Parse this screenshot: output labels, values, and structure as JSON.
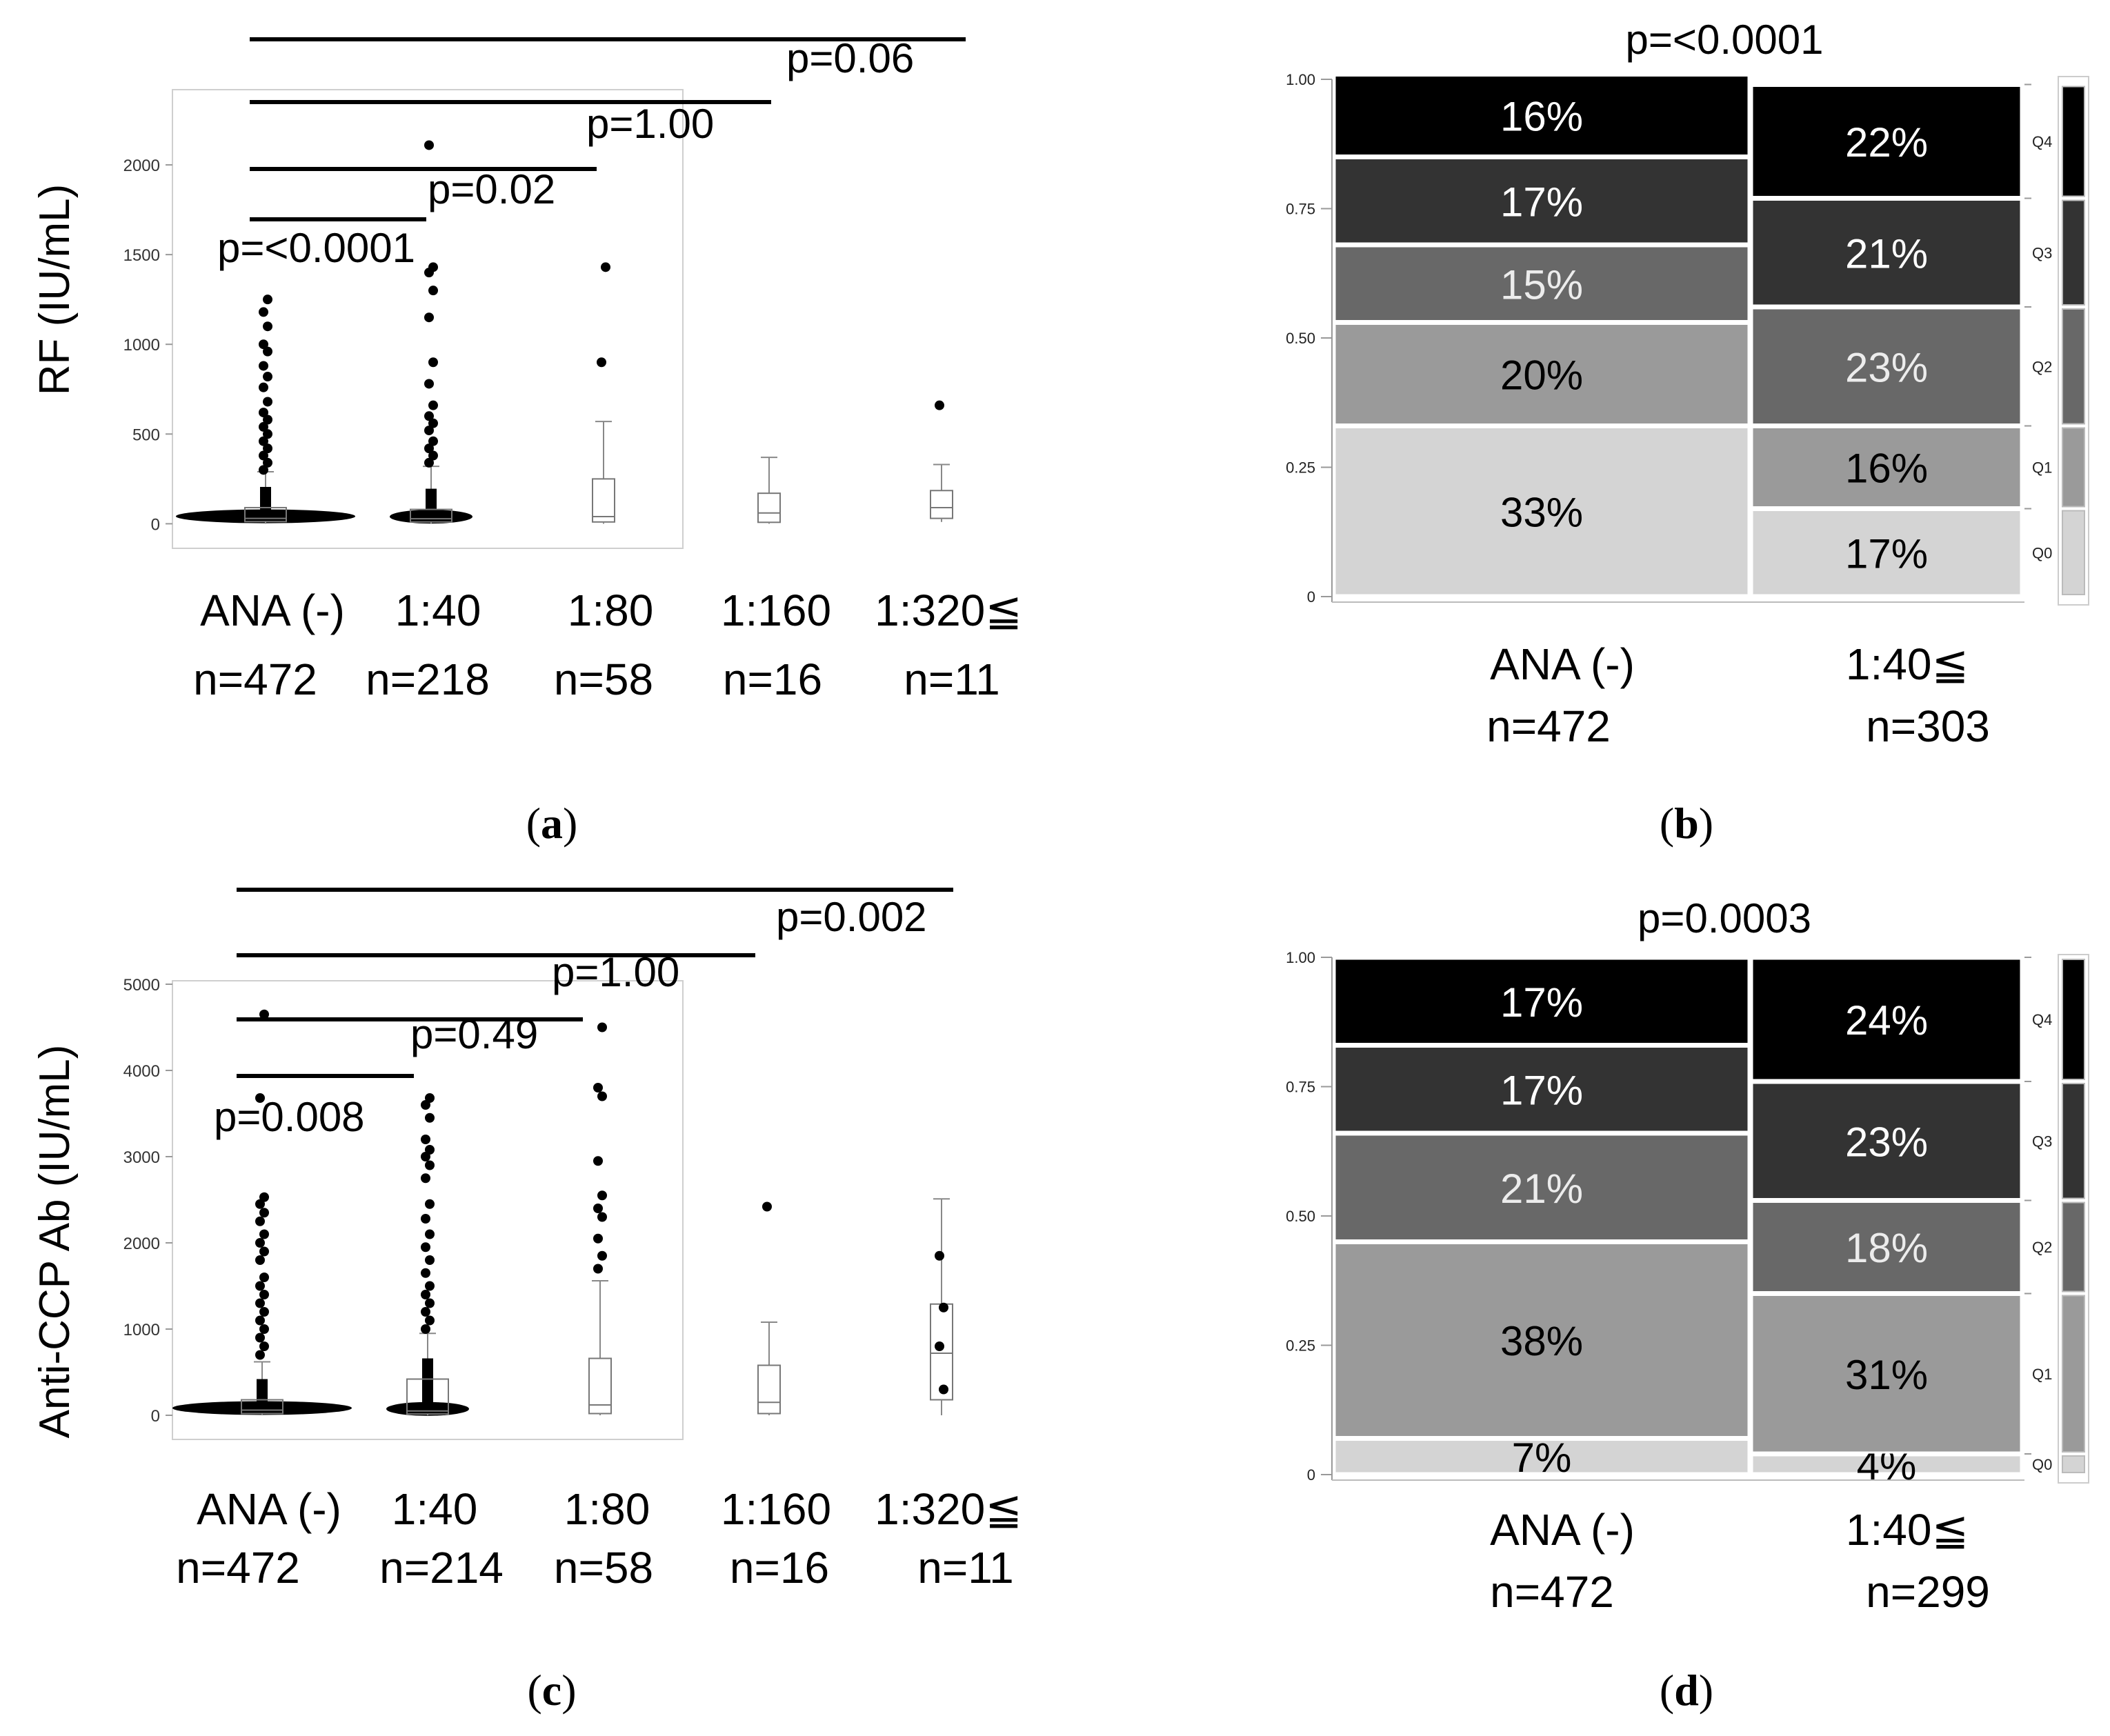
{
  "panels": [
    {
      "id": "a",
      "caption": "a",
      "chart_data": {
        "type": "scatter",
        "ylabel": "RF (IU/mL)",
        "ylim": [
          -60,
          2400
        ],
        "yticks": [
          0,
          500,
          1000,
          1500,
          2000
        ],
        "groups": [
          {
            "label": "ANA (-)",
            "n_label": "n=472",
            "box": {
              "q1": 12,
              "median": 30,
              "q3": 90,
              "wlo": 0,
              "whi": 290
            },
            "outliers": [
              300,
              340,
              380,
              420,
              460,
              500,
              540,
              580,
              620,
              680,
              760,
              820,
              880,
              960,
              1000,
              1100,
              1180,
              1250
            ]
          },
          {
            "label": "1:40",
            "n_label": "n=218",
            "box": {
              "q1": 10,
              "median": 28,
              "q3": 80,
              "wlo": 0,
              "whi": 320
            },
            "outliers": [
              340,
              380,
              420,
              460,
              520,
              560,
              600,
              660,
              780,
              900,
              1150,
              1300,
              1400,
              1430,
              2110
            ]
          },
          {
            "label": "1:80",
            "n_label": "n=58",
            "box": {
              "q1": 10,
              "median": 40,
              "q3": 250,
              "wlo": 0,
              "whi": 570
            },
            "outliers": [
              900,
              1430
            ]
          },
          {
            "label": "1:160",
            "n_label": "n=16",
            "box": {
              "q1": 8,
              "median": 60,
              "q3": 170,
              "wlo": 0,
              "whi": 370
            },
            "outliers": []
          },
          {
            "label": "1:320≦",
            "n_label": "n=11",
            "box": {
              "q1": 30,
              "median": 90,
              "q3": 185,
              "wlo": 10,
              "whi": 330
            },
            "outliers": [
              660
            ]
          }
        ],
        "pvalues": [
          "p=<0.0001",
          "p=0.02",
          "p=1.00",
          "p=0.06"
        ]
      }
    },
    {
      "id": "b",
      "caption": "b",
      "chart_data": {
        "type": "bar",
        "title": "p=<0.0001",
        "yticks": [
          "0",
          "0.25",
          "0.50",
          "0.75",
          "1.00"
        ],
        "legend": [
          "Q4",
          "Q3",
          "Q2",
          "Q1",
          "Q0"
        ],
        "categories": [
          {
            "label": "ANA (-)",
            "n_label": "n=472",
            "segments": [
              {
                "q": "Q0",
                "v": 0.33,
                "label": "33%"
              },
              {
                "q": "Q1",
                "v": 0.2,
                "label": "20%"
              },
              {
                "q": "Q2",
                "v": 0.15,
                "label": "15%"
              },
              {
                "q": "Q3",
                "v": 0.17,
                "label": "17%"
              },
              {
                "q": "Q4",
                "v": 0.16,
                "label": "16%"
              }
            ]
          },
          {
            "label": "1:40≦",
            "n_label": "n=303",
            "segments": [
              {
                "q": "Q0",
                "v": 0.17,
                "label": "17%"
              },
              {
                "q": "Q1",
                "v": 0.16,
                "label": "16%"
              },
              {
                "q": "Q2",
                "v": 0.23,
                "label": "23%"
              },
              {
                "q": "Q3",
                "v": 0.21,
                "label": "21%"
              },
              {
                "q": "Q4",
                "v": 0.22,
                "label": "22%"
              }
            ]
          }
        ]
      }
    },
    {
      "id": "c",
      "caption": "c",
      "chart_data": {
        "type": "scatter",
        "ylabel": "Anti-CCP Ab (IU/mL)",
        "ylim": [
          -120,
          5000
        ],
        "yticks": [
          0,
          1000,
          2000,
          3000,
          4000,
          5000
        ],
        "groups": [
          {
            "label": "ANA (-)",
            "n_label": "n=472",
            "box": {
              "q1": 20,
              "median": 60,
              "q3": 180,
              "wlo": 0,
              "whi": 620
            },
            "outliers": [
              700,
              800,
              900,
              1000,
              1100,
              1200,
              1300,
              1400,
              1500,
              1600,
              1800,
              1900,
              2000,
              2100,
              2250,
              2350,
              2450,
              2530,
              3680,
              4650
            ]
          },
          {
            "label": "1:40",
            "n_label": "n=214",
            "box": {
              "q1": 15,
              "median": 50,
              "q3": 420,
              "wlo": 0,
              "whi": 950
            },
            "outliers": [
              1000,
              1100,
              1200,
              1300,
              1400,
              1500,
              1650,
              1800,
              1950,
              2100,
              2280,
              2450,
              2750,
              2900,
              3000,
              3080,
              3200,
              3450,
              3600,
              3680
            ]
          },
          {
            "label": "1:80",
            "n_label": "n=58",
            "box": {
              "q1": 20,
              "median": 120,
              "q3": 660,
              "wlo": 0,
              "whi": 1560
            },
            "outliers": [
              1700,
              1850,
              2050,
              2300,
              2400,
              2550,
              2950,
              3700,
              3800,
              4500
            ]
          },
          {
            "label": "1:160",
            "n_label": "n=16",
            "box": {
              "q1": 20,
              "median": 150,
              "q3": 580,
              "wlo": 0,
              "whi": 1080
            },
            "outliers": [
              2420
            ]
          },
          {
            "label": "1:320≦",
            "n_label": "n=11",
            "box": {
              "q1": 180,
              "median": 720,
              "q3": 1290,
              "wlo": 0,
              "whi": 2510
            },
            "outliers": [
              1850,
              1250,
              800,
              300
            ]
          }
        ],
        "pvalues": [
          "p=0.008",
          "p=0.49",
          "p=1.00",
          "p=0.002"
        ]
      }
    },
    {
      "id": "d",
      "caption": "d",
      "chart_data": {
        "type": "bar",
        "title": "p=0.0003",
        "yticks": [
          "0",
          "0.25",
          "0.50",
          "0.75",
          "1.00"
        ],
        "legend": [
          "Q4",
          "Q3",
          "Q2",
          "Q1",
          "Q0"
        ],
        "categories": [
          {
            "label": "ANA (-)",
            "n_label": "n=472",
            "segments": [
              {
                "q": "Q0",
                "v": 0.07,
                "label": "7%"
              },
              {
                "q": "Q1",
                "v": 0.38,
                "label": "38%"
              },
              {
                "q": "Q2",
                "v": 0.21,
                "label": "21%"
              },
              {
                "q": "Q3",
                "v": 0.17,
                "label": "17%"
              },
              {
                "q": "Q4",
                "v": 0.17,
                "label": "17%"
              }
            ]
          },
          {
            "label": "1:40≦",
            "n_label": "n=299",
            "segments": [
              {
                "q": "Q0",
                "v": 0.04,
                "label": "4%"
              },
              {
                "q": "Q1",
                "v": 0.31,
                "label": "31%"
              },
              {
                "q": "Q2",
                "v": 0.18,
                "label": "18%"
              },
              {
                "q": "Q3",
                "v": 0.23,
                "label": "23%"
              },
              {
                "q": "Q4",
                "v": 0.24,
                "label": "24%"
              }
            ]
          }
        ]
      }
    }
  ],
  "colors": {
    "Q0": "#d4d4d4",
    "Q1": "#9a9a9a",
    "Q2": "#686868",
    "Q3": "#333333",
    "Q4": "#000000",
    "Q0_text": "#000000",
    "Q1_text": "#000000",
    "Q2_text": "#ececec",
    "Q3_text": "#ffffff",
    "Q4_text": "#ffffff"
  }
}
